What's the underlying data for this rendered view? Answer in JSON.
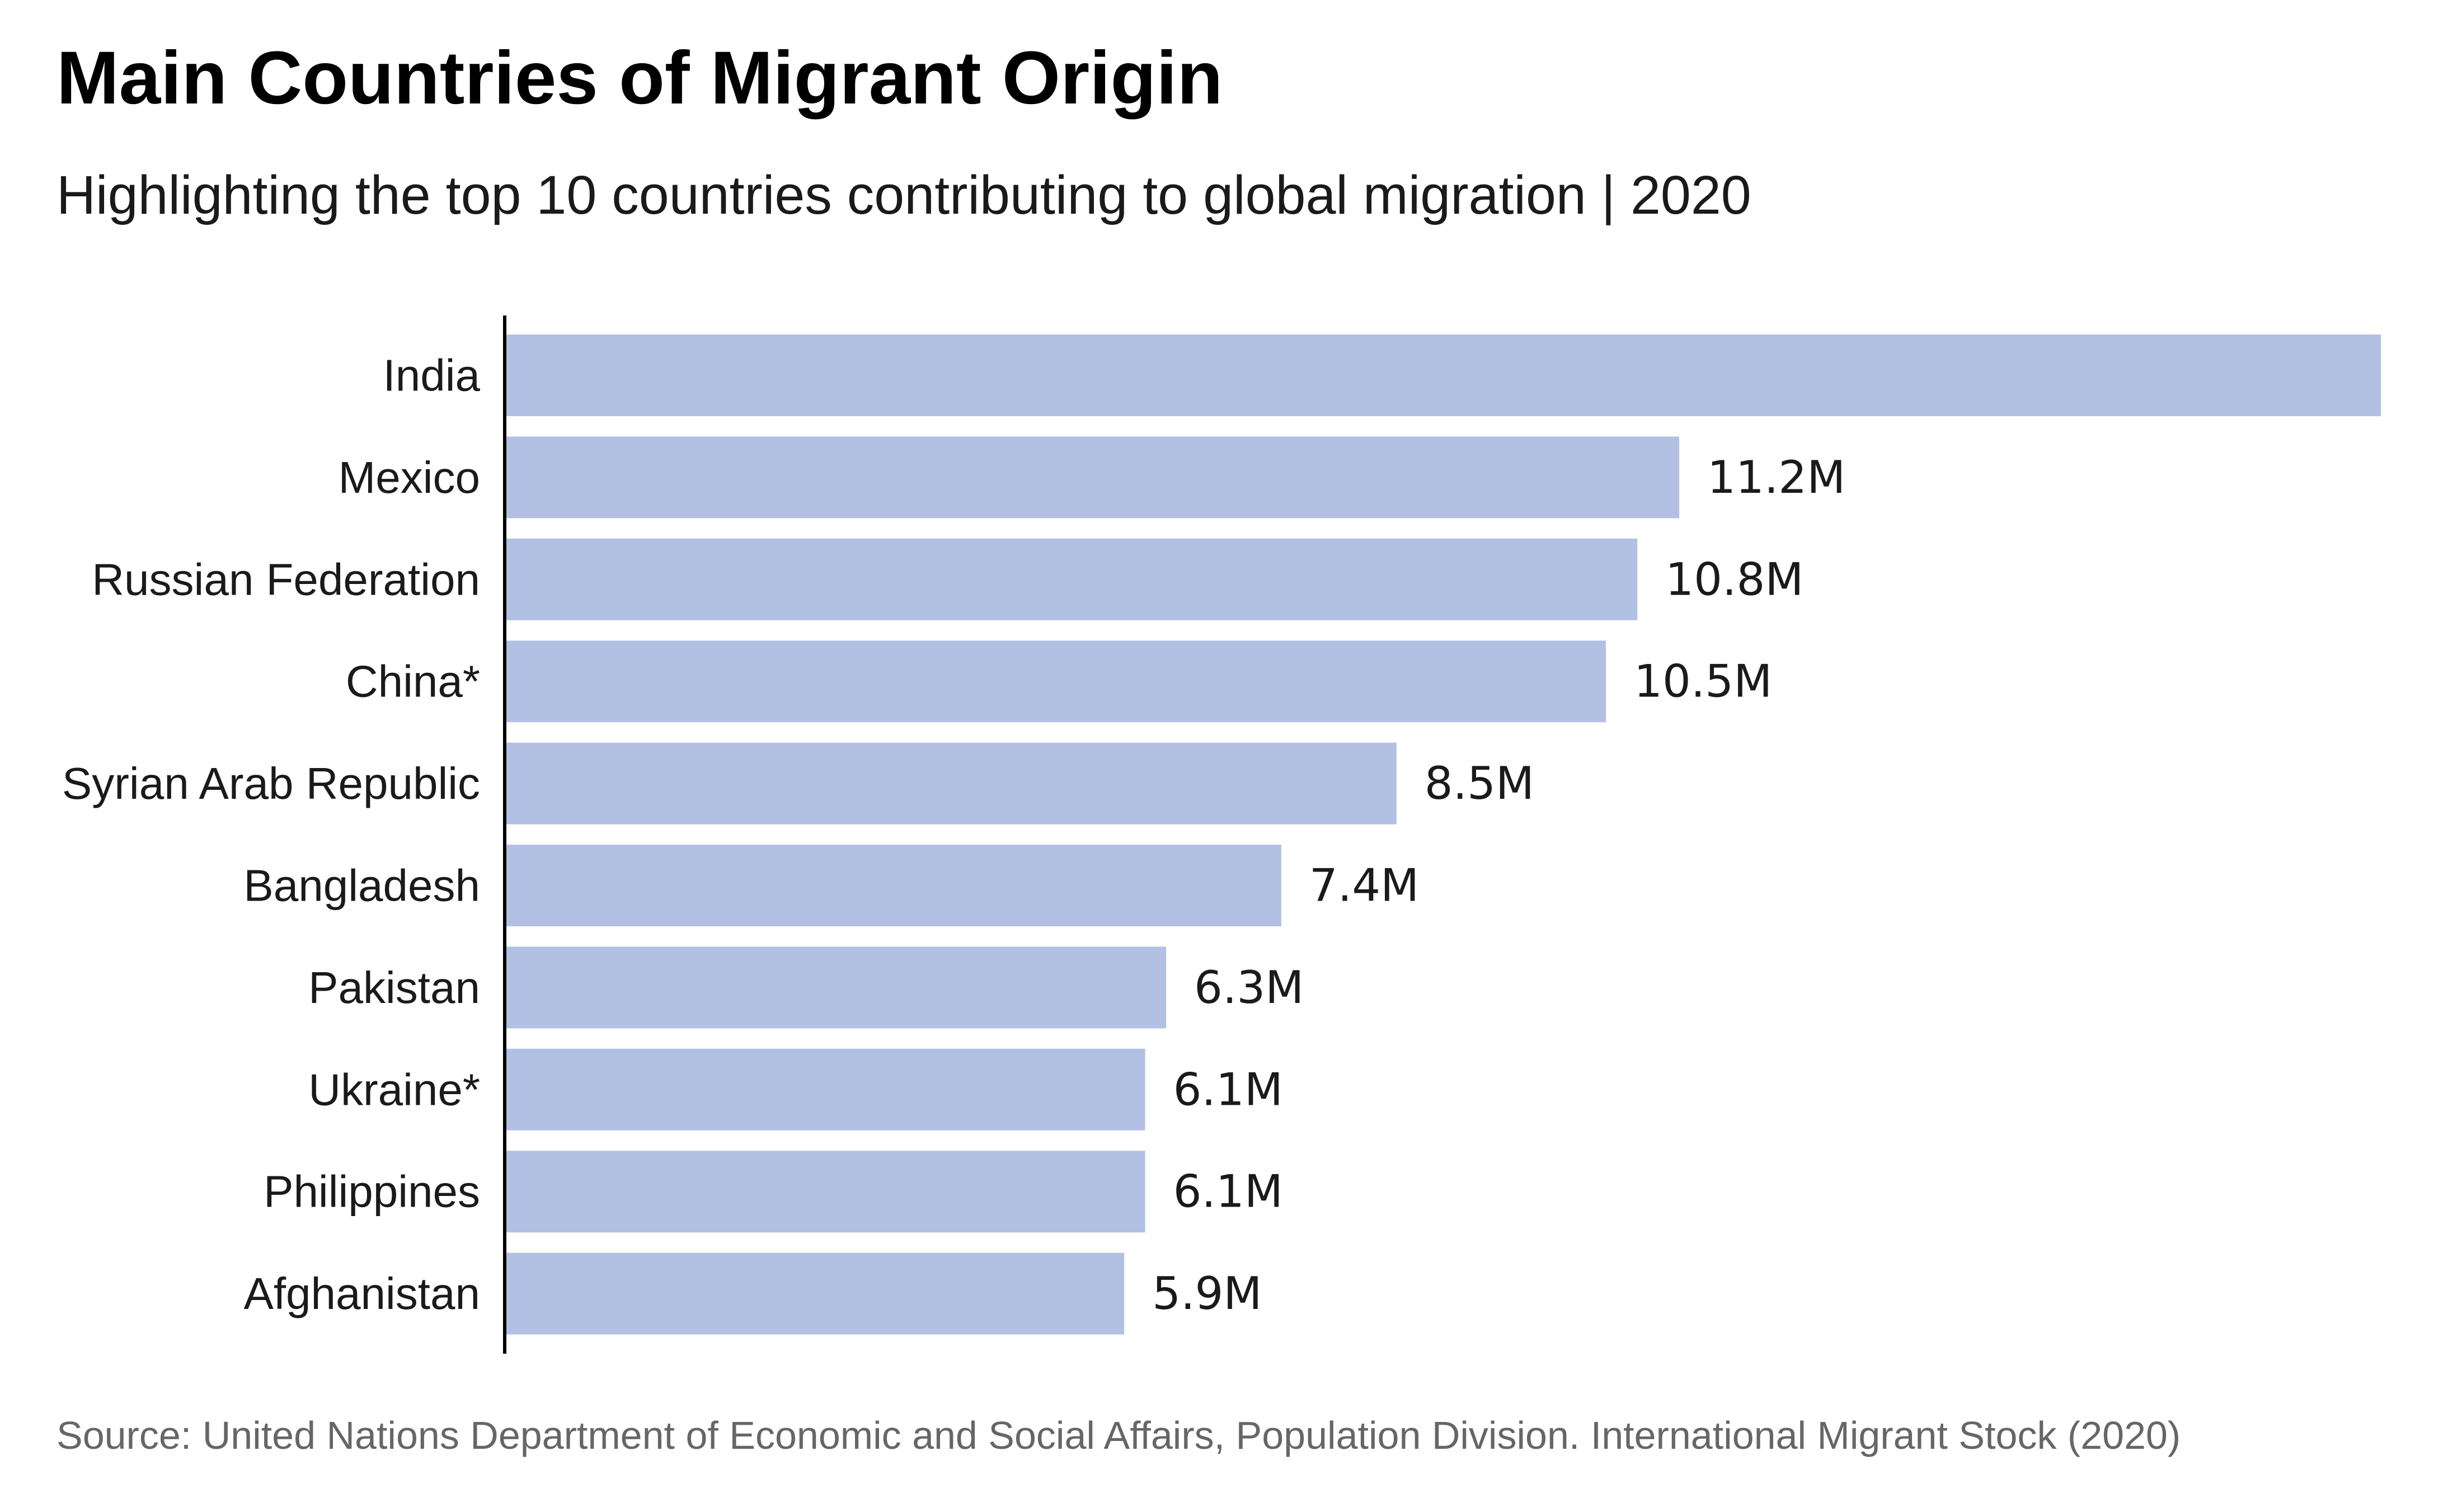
{
  "chart_data": {
    "type": "bar",
    "orientation": "horizontal",
    "title": "Main Countries of Migrant Origin",
    "subtitle": "Highlighting the top 10 countries contributing to global migration | 2020",
    "source": "Source: United Nations Department of Economic and Social Affairs, Population Division. International Migrant Stock (2020)",
    "categories": [
      "India",
      "Mexico",
      "Russian Federation",
      "China*",
      "Syrian Arab Republic",
      "Bangladesh",
      "Pakistan",
      "Ukraine*",
      "Philippines",
      "Afghanistan"
    ],
    "values": [
      17.9,
      11.2,
      10.8,
      10.5,
      8.5,
      7.4,
      6.3,
      6.1,
      6.1,
      5.9
    ],
    "value_labels": [
      "",
      "11.2M",
      "10.8M",
      "10.5M",
      "8.5M",
      "7.4M",
      "6.3M",
      "6.1M",
      "6.1M",
      "5.9M"
    ],
    "xlim": [
      0,
      17.9
    ],
    "bar_color": "#b2c1e3",
    "grid": false,
    "legend": false
  }
}
